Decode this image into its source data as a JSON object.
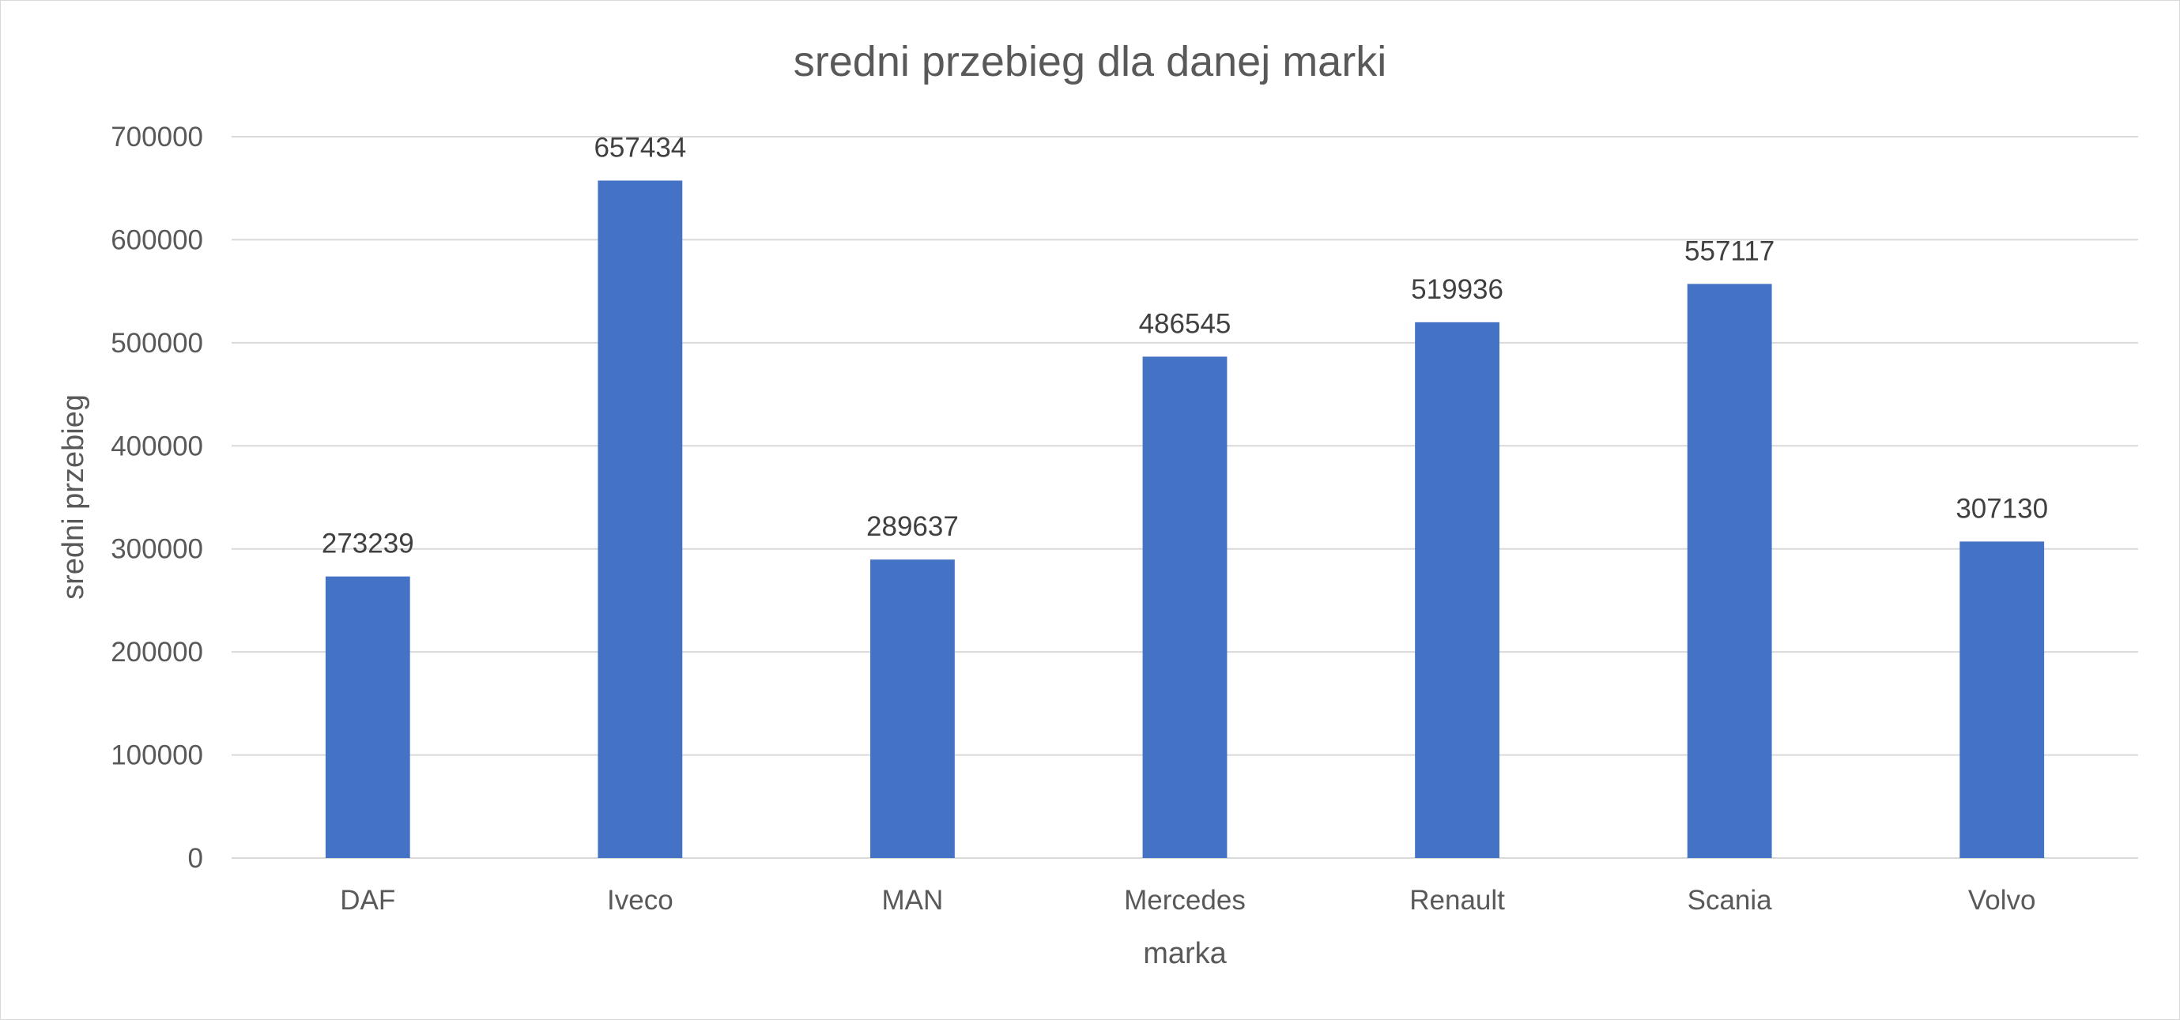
{
  "chart_data": {
    "type": "bar",
    "title": "sredni przebieg dla danej marki",
    "xlabel": "marka",
    "ylabel": "sredni przebieg",
    "categories": [
      "DAF",
      "Iveco",
      "MAN",
      "Mercedes",
      "Renault",
      "Scania",
      "Volvo"
    ],
    "values": [
      273239,
      657434,
      289637,
      486545,
      519936,
      557117,
      307130
    ],
    "data_labels": [
      "273239",
      "657434",
      "289637",
      "486545",
      "519936",
      "557117",
      "307130"
    ],
    "ylim": [
      0,
      700000
    ],
    "yticks": [
      0,
      100000,
      200000,
      300000,
      400000,
      500000,
      600000,
      700000
    ],
    "ytick_labels": [
      "0",
      "100000",
      "200000",
      "300000",
      "400000",
      "500000",
      "600000",
      "700000"
    ],
    "grid": true,
    "legend": "none",
    "bar_color": "#4472C4"
  }
}
